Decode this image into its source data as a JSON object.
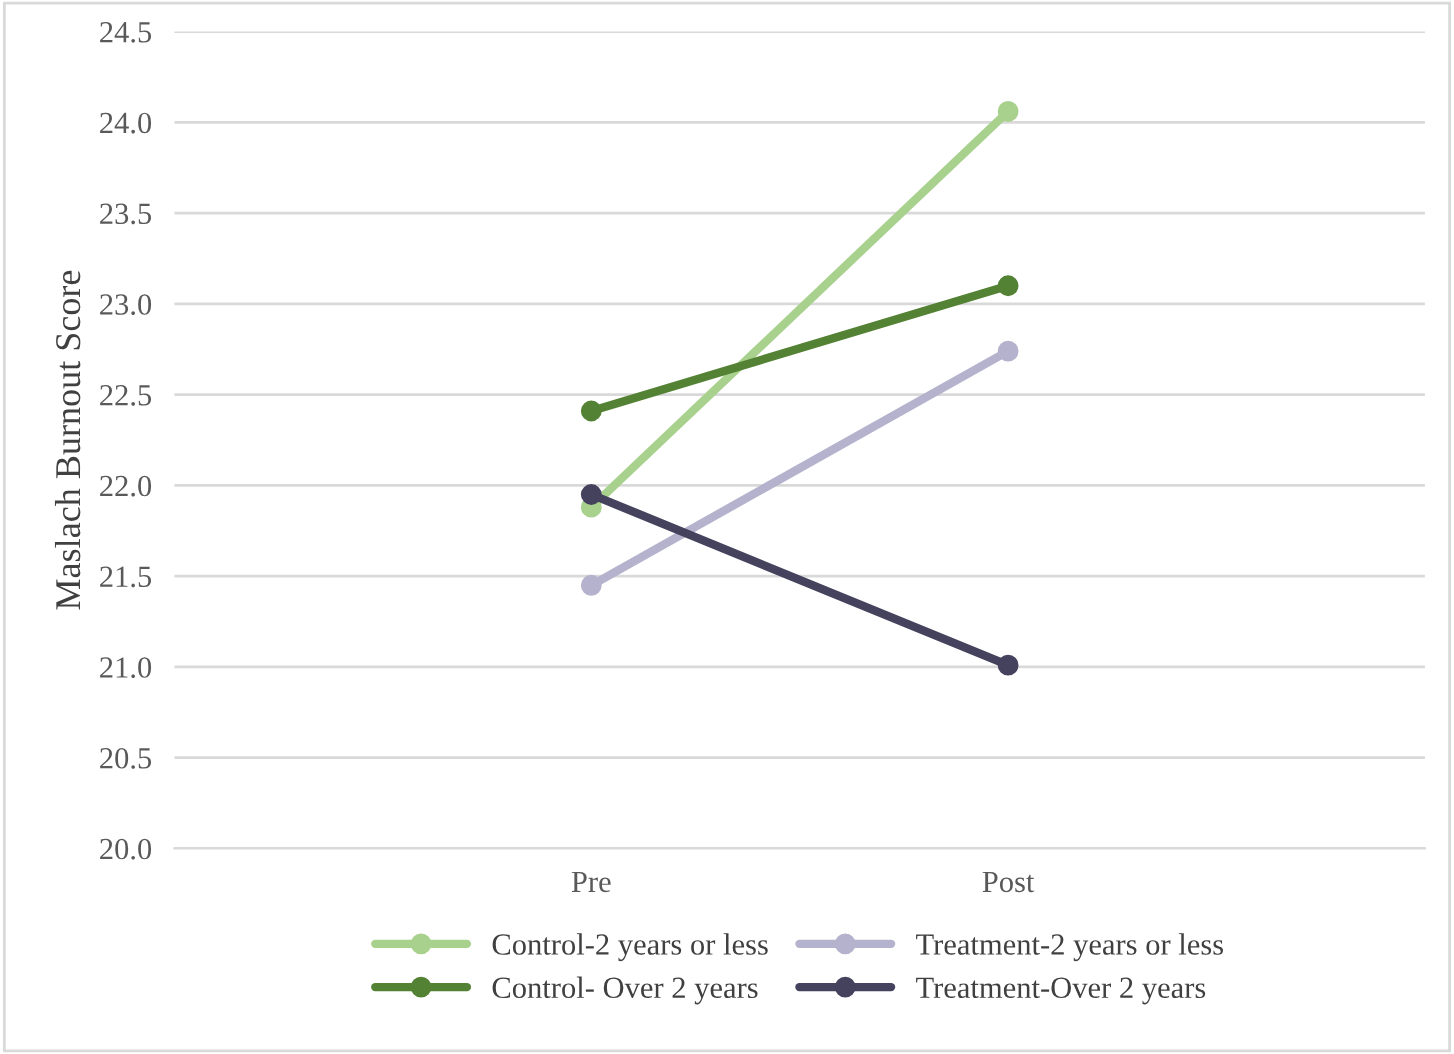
{
  "chart_data": {
    "type": "line",
    "ylabel": "Maslach Burnout Score",
    "categories": [
      "Pre",
      "Post"
    ],
    "series": [
      {
        "name": "Control-2 years or less",
        "color": "#a9d18e",
        "values": [
          21.88,
          24.06
        ]
      },
      {
        "name": "Control- Over 2 years",
        "color": "#548235",
        "values": [
          22.41,
          23.1
        ]
      },
      {
        "name": "Treatment-2 years or less",
        "color": "#b4b2cc",
        "values": [
          21.45,
          22.74
        ]
      },
      {
        "name": "Treatment-Over 2 years",
        "color": "#45425e",
        "values": [
          21.95,
          21.01
        ]
      }
    ],
    "ylim": [
      20.0,
      24.5
    ],
    "yticks": [
      {
        "value": 20,
        "label": "20.0"
      },
      20.5,
      {
        "value": 21,
        "label": "21.0"
      },
      21.5,
      {
        "value": 22,
        "label": "22.0"
      },
      22.5,
      {
        "value": 23,
        "label": "23.0"
      },
      23.5,
      {
        "value": 24,
        "label": "24.0"
      },
      24.5
    ],
    "grid": "y",
    "legend": "bottom",
    "marker": "circle",
    "line_style": "solid"
  }
}
